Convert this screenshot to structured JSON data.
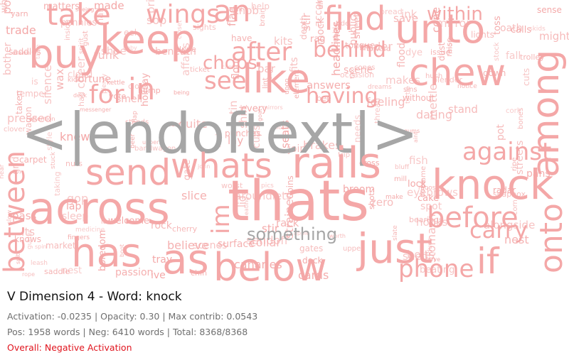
{
  "title": "V Dimension 4 - Word: knock",
  "stats": {
    "line1": "Activation: -0.0235 | Opacity: 0.30 | Max contrib: 0.0543",
    "line2": "Pos: 1958 words | Neg: 6410 words | Total: 8368/8368",
    "overall": "Overall: Negative Activation"
  },
  "colors": {
    "word": "#f4a7a7",
    "highlight": "#a6a6a6",
    "overall": "#e0141e"
  },
  "words_large": [
    "<|endoftext|>",
    "thats",
    "across",
    "knock",
    "below",
    "whats",
    "rails",
    "just",
    "has",
    "as",
    "like",
    "keep",
    "find",
    "unto",
    "chew",
    "send",
    "buy",
    "an",
    "take",
    "wings",
    "among",
    "before",
    "onto",
    "between",
    "if",
    "after",
    "behind",
    "having",
    "see",
    "for",
    "in",
    "against",
    "phone",
    "carry",
    "im",
    "something",
    "chops",
    "within",
    "within",
    "across"
  ],
  "words_small": [
    "depth",
    "market",
    "blame",
    "toward",
    "leash",
    "trolley",
    "beneath",
    "element",
    "sights",
    "bar",
    "public",
    "attention",
    "quite",
    "shirt",
    "fortune",
    "nest",
    "temper",
    "shots",
    "john",
    "collar",
    "dues",
    "make",
    "more",
    "apple",
    "is",
    "clock",
    "near",
    "goat",
    "without",
    "holiday",
    "table",
    "every",
    "have",
    "radar",
    "lay",
    "cards",
    "saddle",
    "bearings",
    "save",
    "under",
    "upon",
    "taken",
    "sins",
    "raise",
    "stir",
    "sack",
    "gums",
    "climb",
    "slate",
    "ticket",
    "upper",
    "mettle",
    "bluff",
    "drive",
    "makes",
    "streets",
    "rag",
    "join",
    "messenger",
    "sendoff",
    "affairs",
    "chin",
    "wagon",
    "bandwagon",
    "needs",
    "help",
    "oats",
    "made",
    "fish",
    "tide",
    "ripe",
    "bother",
    "uppers",
    "silence",
    "closet",
    "cherry",
    "feeling",
    "hush",
    "lights",
    "does",
    "eating",
    "clover",
    "cookies",
    "aroundlets",
    "stomach",
    "soapbox",
    "issue",
    "gate",
    "style",
    "headlines",
    "mill",
    "seeing",
    "wheels",
    "powder",
    "cloud",
    "carpet",
    "believe",
    "deck",
    "beating",
    "dreams",
    "hump",
    "being",
    "smell",
    "answers",
    "eyebrows",
    "might",
    "had",
    "spirit",
    "taking",
    "stuck",
    "worth",
    "tongue",
    "brain",
    "welcome",
    "cross",
    "surface",
    "trade",
    "sop",
    "toss",
    "fingers",
    "pins",
    "medicine",
    "blues",
    "brakes",
    "inside",
    "differ",
    "worst",
    "skids",
    "nuts",
    "funk",
    "hooks",
    "tray",
    "fall",
    "bee",
    "gust",
    "spot",
    "rack",
    "notice",
    "serve",
    "occasion",
    "punches",
    "its",
    "slow",
    "corn",
    "trip",
    "aint",
    "fits",
    "bubble",
    "bones",
    "ive",
    "gop",
    "zero",
    "eel",
    "vote",
    "pressed",
    "pics",
    "calls",
    "grid",
    "lap",
    "flag",
    "stand",
    "stands",
    "turtle",
    "stir",
    "alongside",
    "sense",
    "matters",
    "boredom",
    "baby",
    "bread",
    "passion",
    "strained",
    "canaries",
    "spit",
    "drawn",
    "scenes",
    "shed",
    "flood",
    "gates",
    "aunt",
    "mirror",
    "pennies",
    "cheer",
    "rock",
    "knew",
    "knows",
    "beer",
    "scene",
    "sleep",
    "blender",
    "dating",
    "kits",
    "saddles",
    "accounts",
    "pride",
    "cuts",
    "plenty",
    "seats",
    "cake",
    "cones",
    "slice",
    "cups",
    "gutter",
    "moose",
    "luck",
    "mirrors",
    "pot",
    "pans",
    "pass",
    "gown",
    "oath",
    "dye",
    "ink",
    "kick",
    "lock",
    "dock",
    "tax",
    "wax",
    "knob",
    "mock",
    "stock",
    "tin",
    "rope",
    "flap",
    "sheet",
    "spin",
    "hail",
    "kettle",
    "bolts",
    "dust",
    "nest",
    "shoe",
    "boot",
    "jam",
    "lid",
    "lint",
    "flour",
    "broom",
    "thread",
    "yarn",
    "cone",
    "cork"
  ]
}
